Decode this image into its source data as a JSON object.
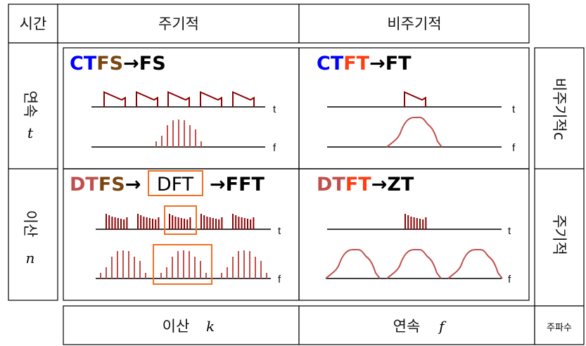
{
  "header": {
    "time": "시간",
    "periodic": "주기적",
    "aperiodic": "비주기적"
  },
  "rows": {
    "continuous": {
      "label": "연속",
      "var": "t"
    },
    "discrete": {
      "label": "이산",
      "var": "n"
    }
  },
  "cells": {
    "ctfs": {
      "parts": [
        "CT",
        "FS",
        "→FS"
      ]
    },
    "ctft": {
      "parts": [
        "CT",
        "FT",
        "→FT"
      ]
    },
    "dtfs": {
      "parts": [
        "DT",
        "FS",
        "→"
      ],
      "dft": "DFT",
      "fft": "→FFT"
    },
    "dtft": {
      "parts": [
        "DT",
        "FT",
        "→ZT"
      ]
    }
  },
  "axis_labels": {
    "t": "t",
    "f": "f"
  },
  "right": {
    "aperiodic": "비주기적c",
    "periodic": "주기적"
  },
  "bottom": {
    "discrete": "이산",
    "discrete_var": "k",
    "continuous": "연속",
    "continuous_var": "f",
    "frequency": "주파수"
  },
  "colors": {
    "blue": "#0000ff",
    "brown": "#7a4510",
    "red_orange": "#ff3c10",
    "rose": "#c0504d",
    "dark_red": "#8b0000",
    "orange_box": "#f36f21"
  }
}
